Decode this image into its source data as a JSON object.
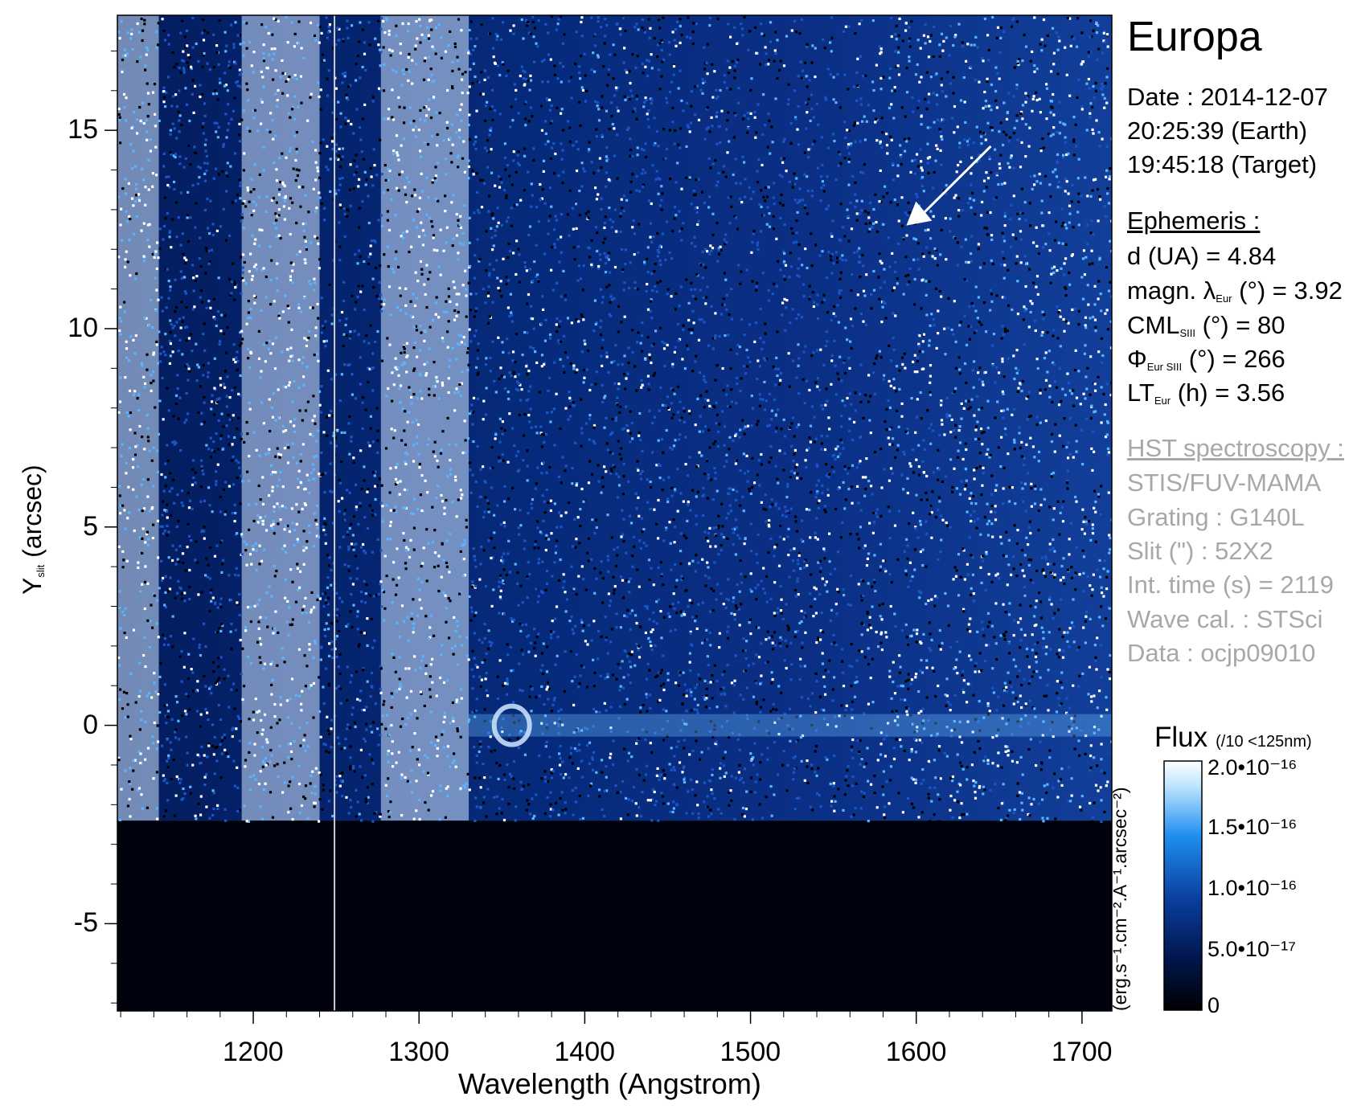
{
  "header": {
    "target": "Europa"
  },
  "info": {
    "date_line": "Date : 2014-12-07",
    "earth_time": "20:25:39 (Earth)",
    "target_time": "19:45:18 (Target)"
  },
  "ephemeris": {
    "heading": "Ephemeris :",
    "d_ua": "d (UA)     = 4.84",
    "magn_pre": "magn. λ",
    "magn_sub": "Eur",
    "magn_post": " (°)  = 3.92",
    "cml_pre": "CML",
    "cml_sub": "SIII",
    "cml_post": " (°) = 80",
    "phi_pre": "Φ",
    "phi_sub": "Eur SIII",
    "phi_post": " (°) = 266",
    "lt_pre": "LT",
    "lt_sub": "Eur",
    "lt_post": " (h) = 3.56"
  },
  "hst": {
    "heading": "HST spectroscopy :",
    "instrument": "STIS/FUV-MAMA",
    "grating": "Grating : G140L",
    "slit": "Slit (\") : 52X2",
    "int_time": "Int. time (s) = 2119",
    "wave_cal": "Wave cal. : STSci",
    "data": "Data : ocjp09010"
  },
  "colorbar": {
    "title": "Flux",
    "note": "(/10 <125nm)",
    "unit": "(erg.s⁻¹.cm⁻².A⁻¹.arcsec⁻²)",
    "labels": [
      "2.0•10⁻¹⁶",
      "1.5•10⁻¹⁶",
      "1.0•10⁻¹⁶",
      "5.0•10⁻¹⁷",
      "0"
    ],
    "colors": [
      "#000000",
      "#00154a",
      "#0a3fa0",
      "#1f8ff0",
      "#bfe4ff",
      "#ffffff"
    ]
  },
  "chart_data": {
    "type": "heatmap",
    "title": "Europa",
    "xlabel": "Wavelength (Angstrom)",
    "ylabel": "Y slit (arcsec)",
    "ylabel_main": "Y",
    "ylabel_sub": "slit",
    "ylabel_post": " (arcsec)",
    "xlim": [
      1118,
      1718
    ],
    "ylim": [
      -7.2,
      17.9
    ],
    "xticks": [
      1200,
      1300,
      1400,
      1500,
      1600,
      1700
    ],
    "xtick_labels": [
      "1200",
      "1300",
      "1400",
      "1500",
      "1600",
      "1700"
    ],
    "yticks": [
      -5,
      0,
      5,
      10,
      15
    ],
    "ytick_labels": [
      "-5",
      "0",
      "5",
      "10",
      "15"
    ],
    "colorbar_range": [
      0,
      2e-16
    ],
    "slit_edge_y": -2.4,
    "bright_bands": [
      {
        "x0": 1118,
        "x1": 1143,
        "level": 1.6e-16
      },
      {
        "x0": 1193,
        "x1": 1240,
        "level": 1.3e-16
      },
      {
        "x0": 1277,
        "x1": 1330,
        "level": 1.5e-16
      }
    ],
    "emission_features": [
      {
        "name": "OI 1356",
        "x": 1356,
        "y": 0
      },
      {
        "name": "continuum",
        "x0": 1330,
        "x1": 1718,
        "y": 0
      }
    ],
    "divider_x": 1249,
    "arrow": {
      "from": [
        1645,
        14.6
      ],
      "to": [
        1594,
        12.6
      ]
    },
    "grid": false
  }
}
